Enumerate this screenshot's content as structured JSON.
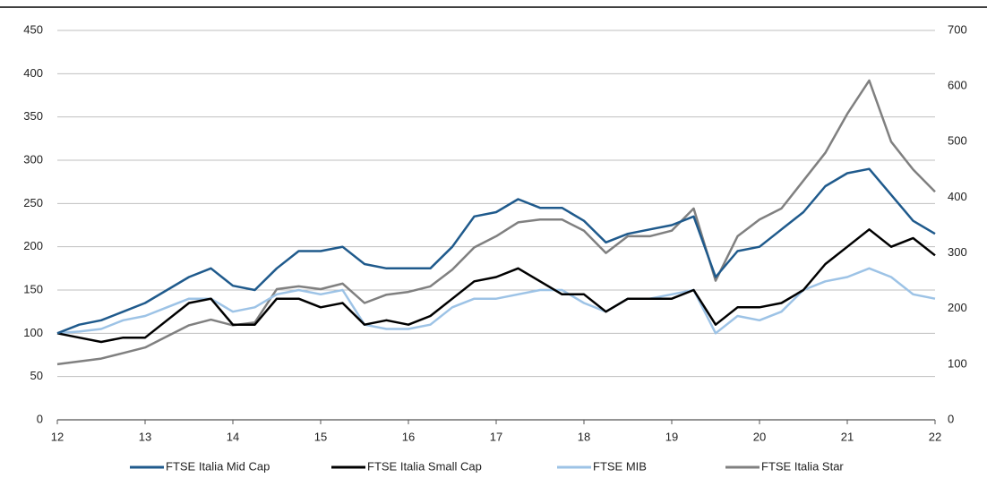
{
  "chart_data": {
    "type": "line",
    "x": [
      12,
      12.25,
      12.5,
      12.75,
      13,
      13.25,
      13.5,
      13.75,
      14,
      14.25,
      14.5,
      14.75,
      15,
      15.25,
      15.5,
      15.75,
      16,
      16.25,
      16.5,
      16.75,
      17,
      17.25,
      17.5,
      17.75,
      18,
      18.25,
      18.5,
      18.75,
      19,
      19.25,
      19.5,
      19.75,
      20,
      20.25,
      20.5,
      20.75,
      21,
      21.25,
      21.5,
      21.75,
      22
    ],
    "series": [
      {
        "name": "FTSE Italia Mid Cap",
        "color": "#1f5a8c",
        "values": [
          100,
          110,
          115,
          125,
          135,
          150,
          165,
          175,
          155,
          150,
          175,
          195,
          195,
          200,
          180,
          175,
          175,
          175,
          200,
          235,
          240,
          255,
          245,
          245,
          230,
          205,
          215,
          220,
          225,
          235,
          165,
          195,
          200,
          220,
          240,
          270,
          285,
          290,
          260,
          230,
          215
        ]
      },
      {
        "name": "FTSE Italia Small Cap",
        "color": "#000000",
        "values": [
          100,
          95,
          90,
          95,
          95,
          115,
          135,
          140,
          110,
          110,
          140,
          140,
          130,
          135,
          110,
          115,
          110,
          120,
          140,
          160,
          165,
          175,
          160,
          145,
          145,
          125,
          140,
          140,
          140,
          150,
          110,
          130,
          130,
          135,
          150,
          180,
          200,
          220,
          200,
          210,
          190
        ]
      },
      {
        "name": "FTSE MIB",
        "color": "#9dc3e6",
        "values": [
          100,
          102,
          105,
          115,
          120,
          130,
          140,
          140,
          125,
          130,
          145,
          150,
          145,
          150,
          110,
          105,
          105,
          110,
          130,
          140,
          140,
          145,
          150,
          150,
          135,
          125,
          140,
          140,
          145,
          150,
          100,
          120,
          115,
          125,
          150,
          160,
          165,
          175,
          165,
          145,
          140
        ]
      },
      {
        "name": "FTSE Italia Star",
        "color": "#808080",
        "axis": "y2",
        "values": [
          100,
          105,
          110,
          120,
          130,
          150,
          170,
          180,
          170,
          175,
          235,
          240,
          235,
          245,
          210,
          225,
          230,
          240,
          270,
          310,
          330,
          355,
          360,
          360,
          340,
          300,
          330,
          330,
          340,
          380,
          250,
          330,
          360,
          380,
          430,
          480,
          550,
          610,
          500,
          450,
          410
        ]
      }
    ],
    "xlim": [
      12,
      22
    ],
    "xticks": [
      12,
      13,
      14,
      15,
      16,
      17,
      18,
      19,
      20,
      21,
      22
    ],
    "ylim": [
      0,
      450
    ],
    "yticks": [
      0,
      50,
      100,
      150,
      200,
      250,
      300,
      350,
      400,
      450
    ],
    "y2lim": [
      0,
      700
    ],
    "y2ticks": [
      0,
      100,
      200,
      300,
      400,
      500,
      600,
      700
    ],
    "grid": true,
    "legend": "bottom"
  }
}
